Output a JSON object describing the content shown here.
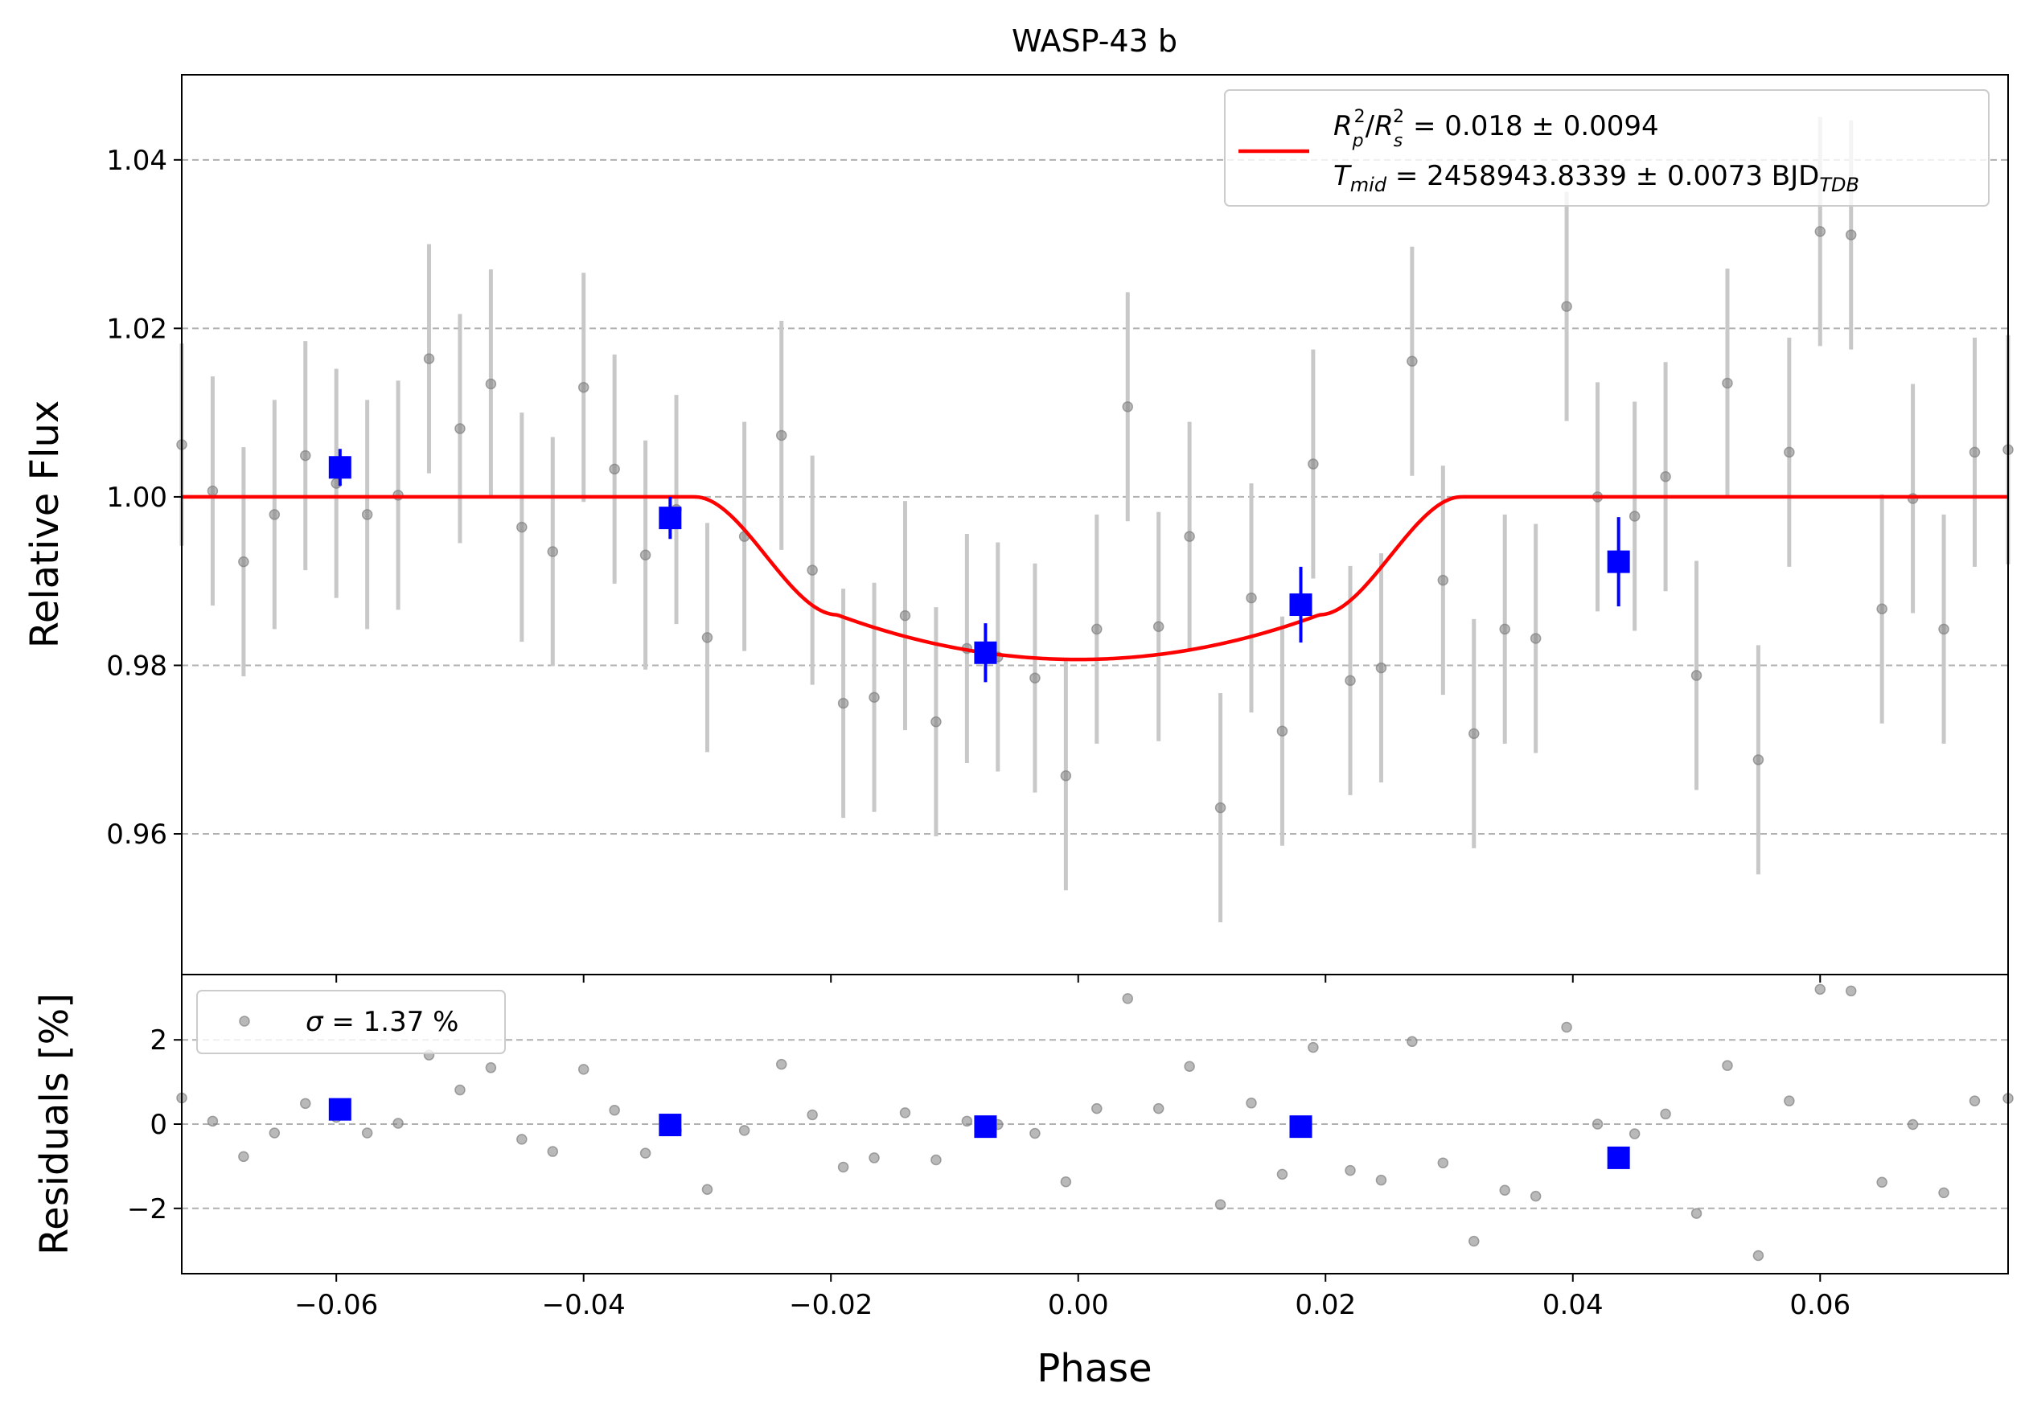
{
  "chart_data": {
    "type": "scatter",
    "title": "WASP-43 b",
    "xlabel": "Phase",
    "xlim": [
      -0.0725,
      0.0752
    ],
    "x_ticks": [
      -0.06,
      -0.04,
      -0.02,
      0.0,
      0.02,
      0.04,
      0.06
    ],
    "x_tick_labels": [
      "−0.06",
      "−0.04",
      "−0.02",
      "0.00",
      "0.02",
      "0.04",
      "0.06"
    ],
    "colors": {
      "data": "#808080",
      "errorbar": "#c8c8c8",
      "binned": "#0000ff",
      "model": "#ff0000",
      "grid": "#b0b0b0"
    },
    "main_panel": {
      "ylabel": "Relative Flux",
      "ylim": [
        0.9433,
        1.0501
      ],
      "y_ticks": [
        0.96,
        0.98,
        1.0,
        1.02,
        1.04
      ],
      "y_tick_labels": [
        "0.96",
        "0.98",
        "1.00",
        "1.02",
        "1.04"
      ],
      "grid": "horizontal dashed",
      "legend": {
        "placement": "upper right",
        "line1": {
          "sym": "R",
          "sub1": "p",
          "sup1": "2",
          "sep": "/",
          "sub2": "s",
          "sup2": "2",
          "value": " = 0.018 ± 0.0094"
        },
        "line2": {
          "sym": "T",
          "sub": "mid",
          "value": " = 2458943.8339 ± 0.0073 BJD",
          "unit_sub": "TDB"
        }
      },
      "model": {
        "depth": 0.018,
        "t1": -0.031,
        "t2": -0.0195,
        "t3": 0.0195,
        "t4": 0.031,
        "floor": 0.9807,
        "contact_level": 0.986
      },
      "data": [
        {
          "x": -0.0725,
          "y": 1.0062,
          "err": 0.012
        },
        {
          "x": -0.07,
          "y": 1.0007,
          "err": 0.0136
        },
        {
          "x": -0.0675,
          "y": 0.9923,
          "err": 0.0136
        },
        {
          "x": -0.065,
          "y": 0.9979,
          "err": 0.0136
        },
        {
          "x": -0.0625,
          "y": 1.0049,
          "err": 0.0136
        },
        {
          "x": -0.06,
          "y": 1.0016,
          "err": 0.0136
        },
        {
          "x": -0.0575,
          "y": 0.9979,
          "err": 0.0136
        },
        {
          "x": -0.055,
          "y": 1.0002,
          "err": 0.0136
        },
        {
          "x": -0.0525,
          "y": 1.0164,
          "err": 0.0136
        },
        {
          "x": -0.05,
          "y": 1.0081,
          "err": 0.0136
        },
        {
          "x": -0.0475,
          "y": 1.0134,
          "err": 0.0136
        },
        {
          "x": -0.045,
          "y": 0.9964,
          "err": 0.0136
        },
        {
          "x": -0.0425,
          "y": 0.9935,
          "err": 0.0136
        },
        {
          "x": -0.04,
          "y": 1.013,
          "err": 0.0136
        },
        {
          "x": -0.0375,
          "y": 1.0033,
          "err": 0.0136
        },
        {
          "x": -0.035,
          "y": 0.9931,
          "err": 0.0136
        },
        {
          "x": -0.0325,
          "y": 0.9985,
          "err": 0.0136
        },
        {
          "x": -0.03,
          "y": 0.9833,
          "err": 0.0136
        },
        {
          "x": -0.027,
          "y": 0.9953,
          "err": 0.0136
        },
        {
          "x": -0.024,
          "y": 1.0073,
          "err": 0.0136
        },
        {
          "x": -0.0215,
          "y": 0.9913,
          "err": 0.0136
        },
        {
          "x": -0.019,
          "y": 0.9755,
          "err": 0.0136
        },
        {
          "x": -0.0165,
          "y": 0.9762,
          "err": 0.0136
        },
        {
          "x": -0.014,
          "y": 0.9859,
          "err": 0.0136
        },
        {
          "x": -0.0115,
          "y": 0.9733,
          "err": 0.0136
        },
        {
          "x": -0.009,
          "y": 0.982,
          "err": 0.0136
        },
        {
          "x": -0.0065,
          "y": 0.981,
          "err": 0.0136
        },
        {
          "x": -0.0035,
          "y": 0.9785,
          "err": 0.0136
        },
        {
          "x": -0.001,
          "y": 0.9669,
          "err": 0.0136
        },
        {
          "x": 0.0015,
          "y": 0.9843,
          "err": 0.0136
        },
        {
          "x": 0.004,
          "y": 1.0107,
          "err": 0.0136
        },
        {
          "x": 0.0065,
          "y": 0.9846,
          "err": 0.0136
        },
        {
          "x": 0.009,
          "y": 0.9953,
          "err": 0.0136
        },
        {
          "x": 0.0115,
          "y": 0.9631,
          "err": 0.0136
        },
        {
          "x": 0.014,
          "y": 0.988,
          "err": 0.0136
        },
        {
          "x": 0.0165,
          "y": 0.9722,
          "err": 0.0136
        },
        {
          "x": 0.019,
          "y": 1.0039,
          "err": 0.0136
        },
        {
          "x": 0.022,
          "y": 0.9782,
          "err": 0.0136
        },
        {
          "x": 0.0245,
          "y": 0.9797,
          "err": 0.0136
        },
        {
          "x": 0.027,
          "y": 1.0161,
          "err": 0.0136
        },
        {
          "x": 0.0295,
          "y": 0.9901,
          "err": 0.0136
        },
        {
          "x": 0.032,
          "y": 0.9719,
          "err": 0.0136
        },
        {
          "x": 0.0345,
          "y": 0.9843,
          "err": 0.0136
        },
        {
          "x": 0.037,
          "y": 0.9832,
          "err": 0.0136
        },
        {
          "x": 0.0395,
          "y": 1.0226,
          "err": 0.0136
        },
        {
          "x": 0.042,
          "y": 1.0,
          "err": 0.0136
        },
        {
          "x": 0.045,
          "y": 0.9977,
          "err": 0.0136
        },
        {
          "x": 0.0475,
          "y": 1.0024,
          "err": 0.0136
        },
        {
          "x": 0.05,
          "y": 0.9788,
          "err": 0.0136
        },
        {
          "x": 0.0525,
          "y": 1.0135,
          "err": 0.0136
        },
        {
          "x": 0.055,
          "y": 0.9688,
          "err": 0.0136
        },
        {
          "x": 0.0575,
          "y": 1.0053,
          "err": 0.0136
        },
        {
          "x": 0.06,
          "y": 1.0315,
          "err": 0.0136
        },
        {
          "x": 0.0625,
          "y": 1.0311,
          "err": 0.0136
        },
        {
          "x": 0.065,
          "y": 0.9867,
          "err": 0.0136
        },
        {
          "x": 0.0675,
          "y": 0.9998,
          "err": 0.0136
        },
        {
          "x": 0.07,
          "y": 0.9843,
          "err": 0.0136
        },
        {
          "x": 0.0725,
          "y": 1.0053,
          "err": 0.0136
        },
        {
          "x": 0.0752,
          "y": 1.0056,
          "err": 0.0136
        }
      ],
      "binned": [
        {
          "x": -0.0597,
          "y": 1.0035,
          "err": 0.0022
        },
        {
          "x": -0.033,
          "y": 0.9975,
          "err": 0.0025
        },
        {
          "x": -0.0075,
          "y": 0.9815,
          "err": 0.0035
        },
        {
          "x": 0.018,
          "y": 0.9872,
          "err": 0.0045
        },
        {
          "x": 0.0437,
          "y": 0.9923,
          "err": 0.0053
        }
      ]
    },
    "residual_panel": {
      "ylabel": "Residuals [%]",
      "ylim": [
        -3.55,
        3.55
      ],
      "y_ticks": [
        -2,
        0,
        2
      ],
      "y_tick_labels": [
        "−2",
        "0",
        "2"
      ],
      "grid": "horizontal dashed",
      "legend": {
        "placement": "upper left",
        "sym": "σ",
        "value": " = 1.37 %"
      },
      "data": [
        {
          "x": -0.0725,
          "y": 0.62
        },
        {
          "x": -0.07,
          "y": 0.07
        },
        {
          "x": -0.0675,
          "y": -0.77
        },
        {
          "x": -0.065,
          "y": -0.21
        },
        {
          "x": -0.0625,
          "y": 0.49
        },
        {
          "x": -0.06,
          "y": 0.16
        },
        {
          "x": -0.0575,
          "y": -0.21
        },
        {
          "x": -0.055,
          "y": 0.02
        },
        {
          "x": -0.0525,
          "y": 1.64
        },
        {
          "x": -0.05,
          "y": 0.81
        },
        {
          "x": -0.0475,
          "y": 1.34
        },
        {
          "x": -0.045,
          "y": -0.36
        },
        {
          "x": -0.0425,
          "y": -0.65
        },
        {
          "x": -0.04,
          "y": 1.3
        },
        {
          "x": -0.0375,
          "y": 0.33
        },
        {
          "x": -0.035,
          "y": -0.69
        },
        {
          "x": -0.0325,
          "y": -0.15
        },
        {
          "x": -0.03,
          "y": -1.55
        },
        {
          "x": -0.027,
          "y": -0.15
        },
        {
          "x": -0.024,
          "y": 1.42
        },
        {
          "x": -0.0215,
          "y": 0.22
        },
        {
          "x": -0.019,
          "y": -1.02
        },
        {
          "x": -0.0165,
          "y": -0.8
        },
        {
          "x": -0.014,
          "y": 0.27
        },
        {
          "x": -0.0115,
          "y": -0.85
        },
        {
          "x": -0.009,
          "y": 0.07
        },
        {
          "x": -0.0065,
          "y": -0.01
        },
        {
          "x": -0.0035,
          "y": -0.22
        },
        {
          "x": -0.001,
          "y": -1.37
        },
        {
          "x": 0.0015,
          "y": 0.37
        },
        {
          "x": 0.004,
          "y": 2.98
        },
        {
          "x": 0.0065,
          "y": 0.37
        },
        {
          "x": 0.009,
          "y": 1.37
        },
        {
          "x": 0.0115,
          "y": -1.91
        },
        {
          "x": 0.014,
          "y": 0.5
        },
        {
          "x": 0.0165,
          "y": -1.19
        },
        {
          "x": 0.019,
          "y": 1.82
        },
        {
          "x": 0.022,
          "y": -1.1
        },
        {
          "x": 0.0245,
          "y": -1.33
        },
        {
          "x": 0.027,
          "y": 1.96
        },
        {
          "x": 0.0295,
          "y": -0.92
        },
        {
          "x": 0.032,
          "y": -2.78
        },
        {
          "x": 0.0345,
          "y": -1.57
        },
        {
          "x": 0.037,
          "y": -1.71
        },
        {
          "x": 0.0395,
          "y": 2.3
        },
        {
          "x": 0.042,
          "y": 0.0
        },
        {
          "x": 0.045,
          "y": -0.23
        },
        {
          "x": 0.0475,
          "y": 0.24
        },
        {
          "x": 0.05,
          "y": -2.12
        },
        {
          "x": 0.0525,
          "y": 1.39
        },
        {
          "x": 0.055,
          "y": -3.12
        },
        {
          "x": 0.0575,
          "y": 0.55
        },
        {
          "x": 0.06,
          "y": 3.2
        },
        {
          "x": 0.0625,
          "y": 3.16
        },
        {
          "x": 0.065,
          "y": -1.38
        },
        {
          "x": 0.0675,
          "y": -0.01
        },
        {
          "x": 0.07,
          "y": -1.63
        },
        {
          "x": 0.0725,
          "y": 0.55
        },
        {
          "x": 0.0752,
          "y": 0.61
        }
      ],
      "binned": [
        {
          "x": -0.0597,
          "y": 0.35
        },
        {
          "x": -0.033,
          "y": -0.02
        },
        {
          "x": -0.0075,
          "y": -0.06
        },
        {
          "x": 0.018,
          "y": -0.06
        },
        {
          "x": 0.0437,
          "y": -0.8
        }
      ]
    }
  }
}
